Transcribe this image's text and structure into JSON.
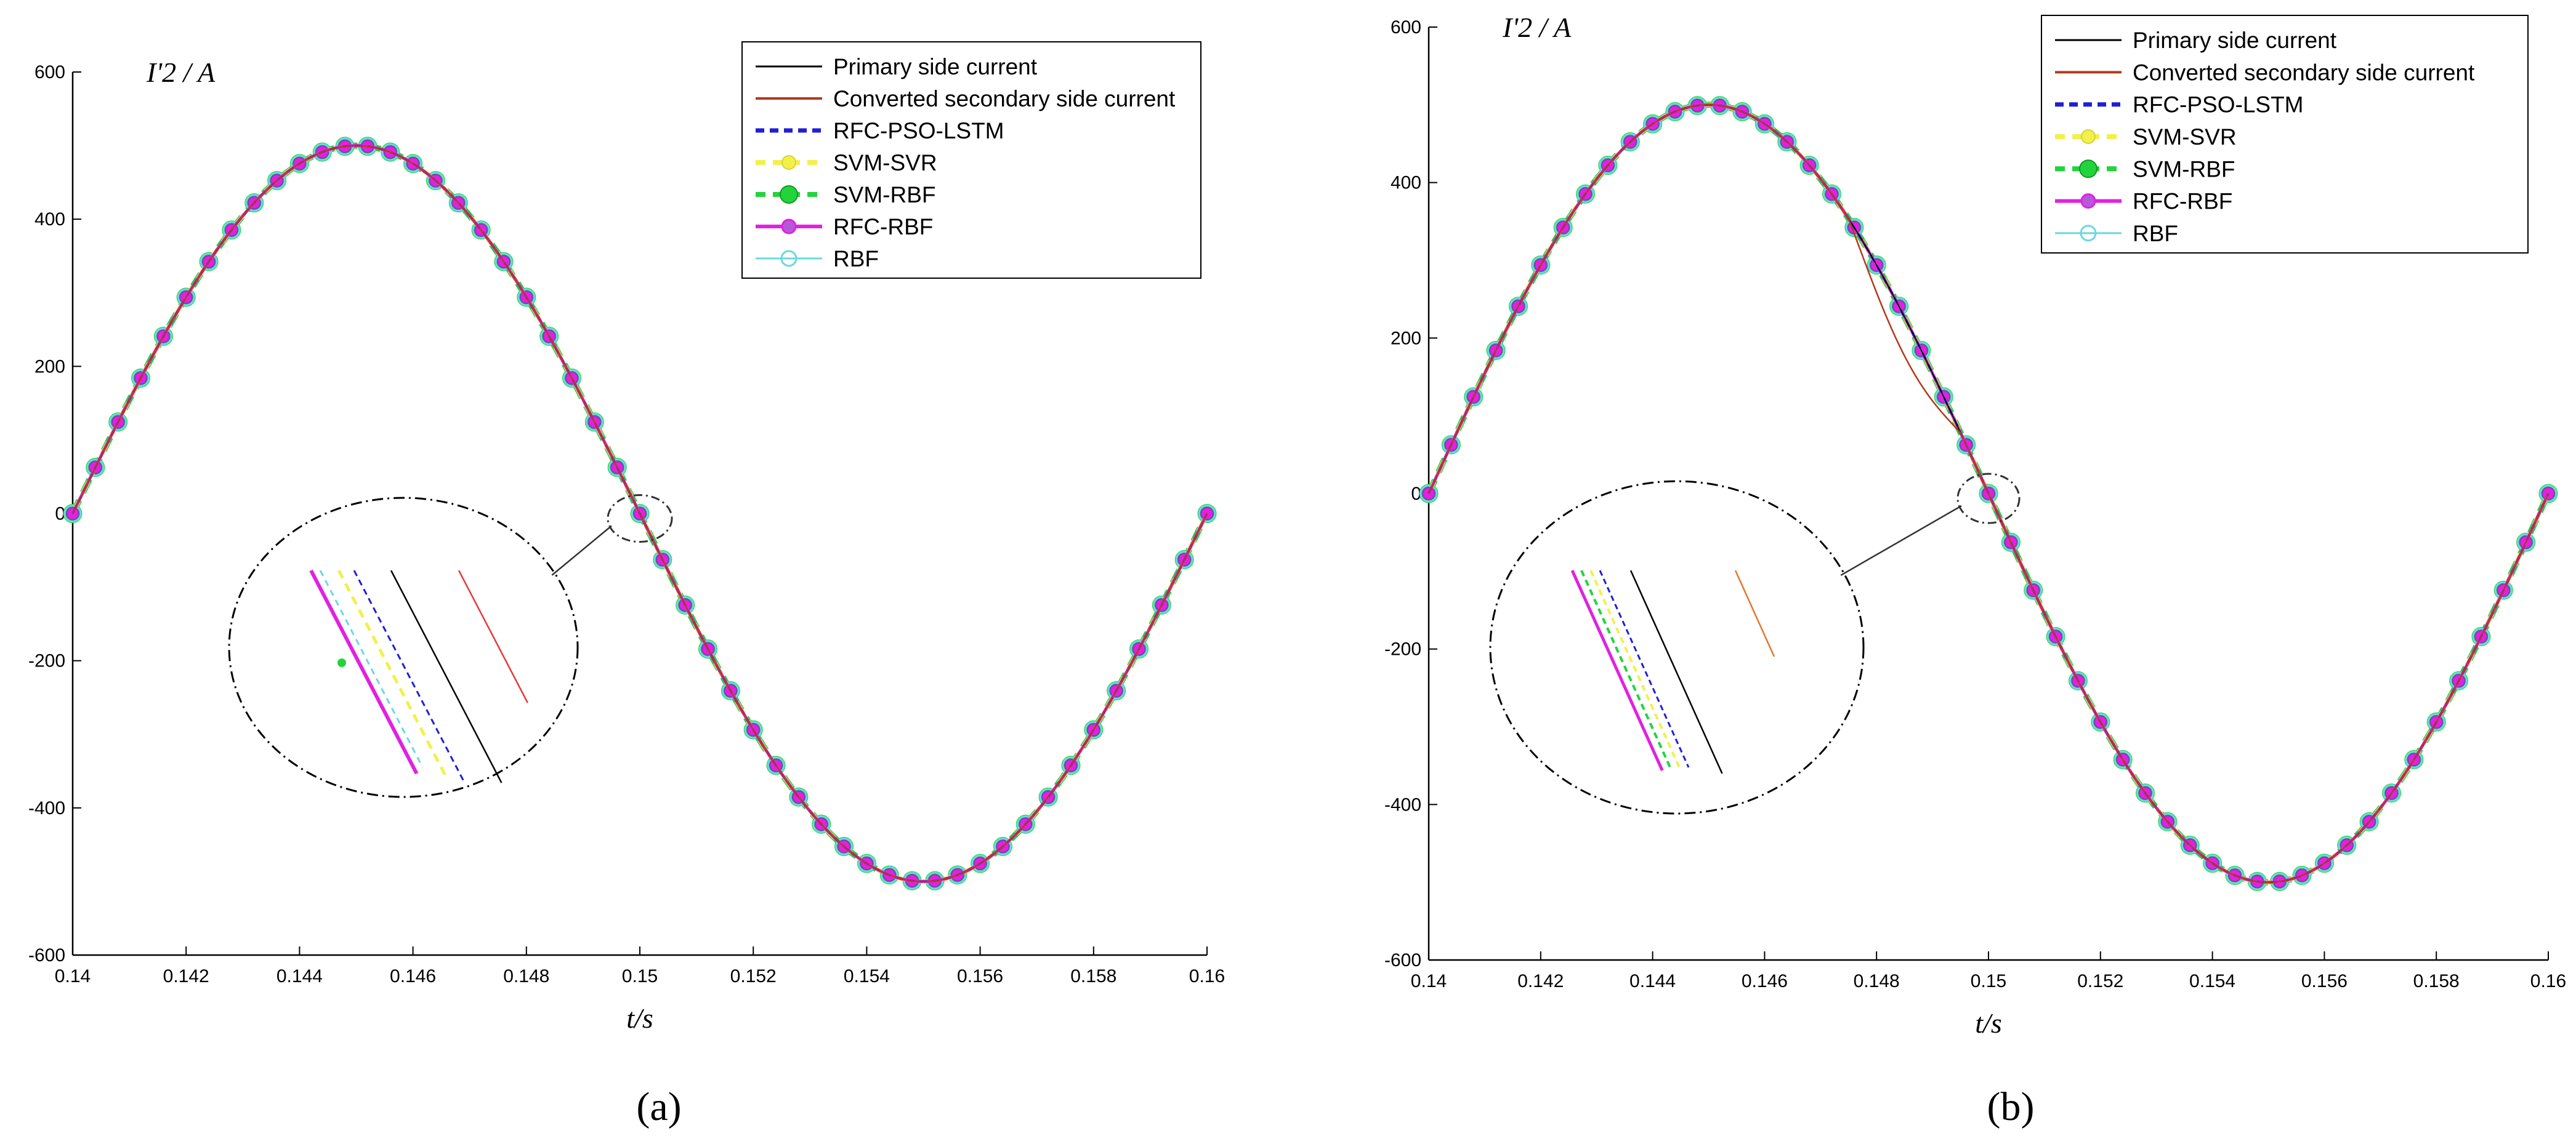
{
  "chart_data": [
    {
      "type": "line",
      "panel": "a",
      "caption": "(a)",
      "xlabel": "t/s",
      "ylabel": "I'2 / A",
      "xlim": [
        0.14,
        0.16
      ],
      "ylim": [
        -600,
        600
      ],
      "xticks": [
        "0.14",
        "0.142",
        "0.144",
        "0.146",
        "0.148",
        "0.15",
        "0.152",
        "0.154",
        "0.156",
        "0.158",
        "0.16"
      ],
      "yticks": [
        "600",
        "400",
        "200",
        "0",
        "-200",
        "-400",
        "-600"
      ],
      "waveform": {
        "amplitude": 500,
        "frequency_hz": 50,
        "t_start": 0.14,
        "t_end": 0.16,
        "phase_at_start": 0,
        "marker_step_s": 0.0004
      },
      "series": [
        {
          "name": "Primary side current",
          "color": "#000000",
          "style": "solid"
        },
        {
          "name": "Converted secondary side current",
          "color": "#b5371c",
          "style": "solid"
        },
        {
          "name": "RFC-PSO-LSTM",
          "color": "#1f1fd6",
          "style": "dashed"
        },
        {
          "name": "SVM-SVR",
          "color": "#f2f04a",
          "style": "dashed-marker"
        },
        {
          "name": "SVM-RBF",
          "color": "#22d43c",
          "style": "dashed-marker"
        },
        {
          "name": "RFC-RBF",
          "color": "#e022e0",
          "style": "solid-marker"
        },
        {
          "name": "RBF",
          "color": "#6ad8e0",
          "style": "solid-marker"
        }
      ],
      "zoom_region_t": 0.15,
      "distortion": null
    },
    {
      "type": "line",
      "panel": "b",
      "caption": "(b)",
      "xlabel": "t/s",
      "ylabel": "I'2 / A",
      "xlim": [
        0.14,
        0.16
      ],
      "ylim": [
        -600,
        600
      ],
      "xticks": [
        "0.14",
        "0.142",
        "0.144",
        "0.146",
        "0.148",
        "0.15",
        "0.152",
        "0.154",
        "0.156",
        "0.158",
        "0.16"
      ],
      "yticks": [
        "600",
        "400",
        "200",
        "0",
        "-200",
        "-400",
        "-600"
      ],
      "waveform": {
        "amplitude": 500,
        "frequency_hz": 50,
        "t_start": 0.14,
        "t_end": 0.16,
        "phase_at_start": 0,
        "marker_step_s": 0.0004
      },
      "series": [
        {
          "name": "Primary side current",
          "color": "#000000",
          "style": "solid"
        },
        {
          "name": "Converted secondary side current",
          "color": "#b5371c",
          "style": "solid"
        },
        {
          "name": "RFC-PSO-LSTM",
          "color": "#1f1fd6",
          "style": "dashed"
        },
        {
          "name": "SVM-SVR",
          "color": "#f2f04a",
          "style": "dashed-marker"
        },
        {
          "name": "SVM-RBF",
          "color": "#22d43c",
          "style": "dashed-marker"
        },
        {
          "name": "RFC-RBF",
          "color": "#e022e0",
          "style": "solid-marker"
        },
        {
          "name": "RBF",
          "color": "#6ad8e0",
          "style": "solid-marker"
        }
      ],
      "zoom_region_t": 0.15,
      "distortion": {
        "t_from": 0.1475,
        "t_to": 0.1495,
        "max_offset_A": -50
      }
    }
  ]
}
